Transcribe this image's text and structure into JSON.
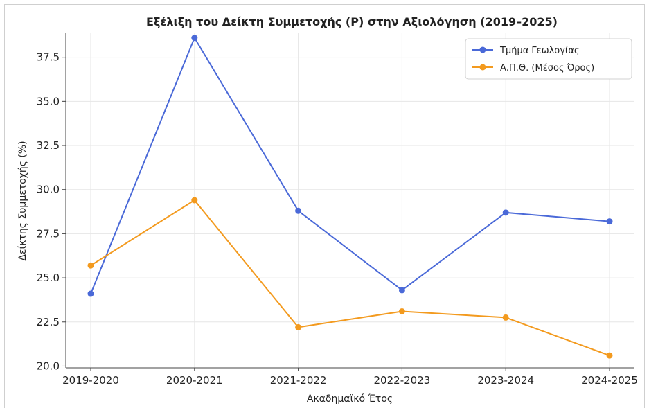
{
  "chart_data": {
    "type": "line",
    "title": "Εξέλιξη του Δείκτη Συμμετοχής (P) στην Αξιολόγηση (2019–2025)",
    "xlabel": "Ακαδημαϊκό Έτος",
    "ylabel": "Δείκτης Συμμετοχής (%)",
    "categories": [
      "2019-2020",
      "2020-2021",
      "2021-2022",
      "2022-2023",
      "2023-2024",
      "2024-2025"
    ],
    "ylim": [
      19.9,
      38.9
    ],
    "yticks": [
      "20.0",
      "22.5",
      "25.0",
      "27.5",
      "30.0",
      "32.5",
      "35.0",
      "37.5"
    ],
    "grid": true,
    "legend_position": "top-right",
    "series": [
      {
        "name": "Τμήμα Γεωλογίας",
        "color": "#4a69d8",
        "values": [
          24.1,
          38.6,
          28.8,
          24.3,
          28.7,
          28.2
        ]
      },
      {
        "name": "Α.Π.Θ. (Μέσος Όρος)",
        "color": "#f39a1e",
        "values": [
          25.7,
          29.4,
          22.2,
          23.1,
          22.75,
          20.6
        ]
      }
    ]
  }
}
